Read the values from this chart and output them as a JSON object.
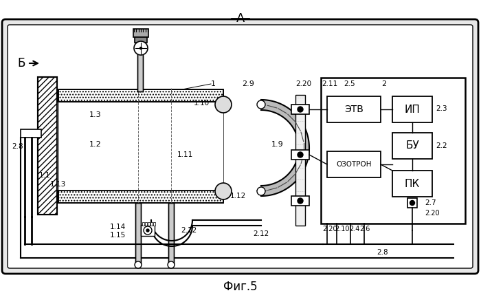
{
  "fig_size": [
    7.0,
    4.26
  ],
  "dpi": 100,
  "background": "#ffffff",
  "labels": {
    "A": "А",
    "B": "Б",
    "fig5": "Фиг.5",
    "1": "1",
    "1.1": "1.1",
    "1.2": "1.2",
    "1.3": "1.3",
    "1.9": "1.9",
    "1.10": "1.10",
    "1.11": "1.11",
    "1.12": "1.12",
    "1.13": "1.13",
    "1.14": "1.14",
    "1.15": "1.15",
    "2": "2",
    "2.2": "2.2",
    "2.3": "2.3",
    "2.4": "2.4",
    "2.5": "2.5",
    "2.6": "2.6",
    "2.7": "2.7",
    "2.8": "2.8",
    "2.9": "2.9",
    "2.10": "2.10",
    "2.11": "2.11",
    "2.12": "2.12",
    "2.20": "2.20",
    "ETW": "ЭТВ",
    "IP": "ИП",
    "BU": "БУ",
    "OZON": "ОЗОТРОН",
    "PK": "ПК"
  }
}
